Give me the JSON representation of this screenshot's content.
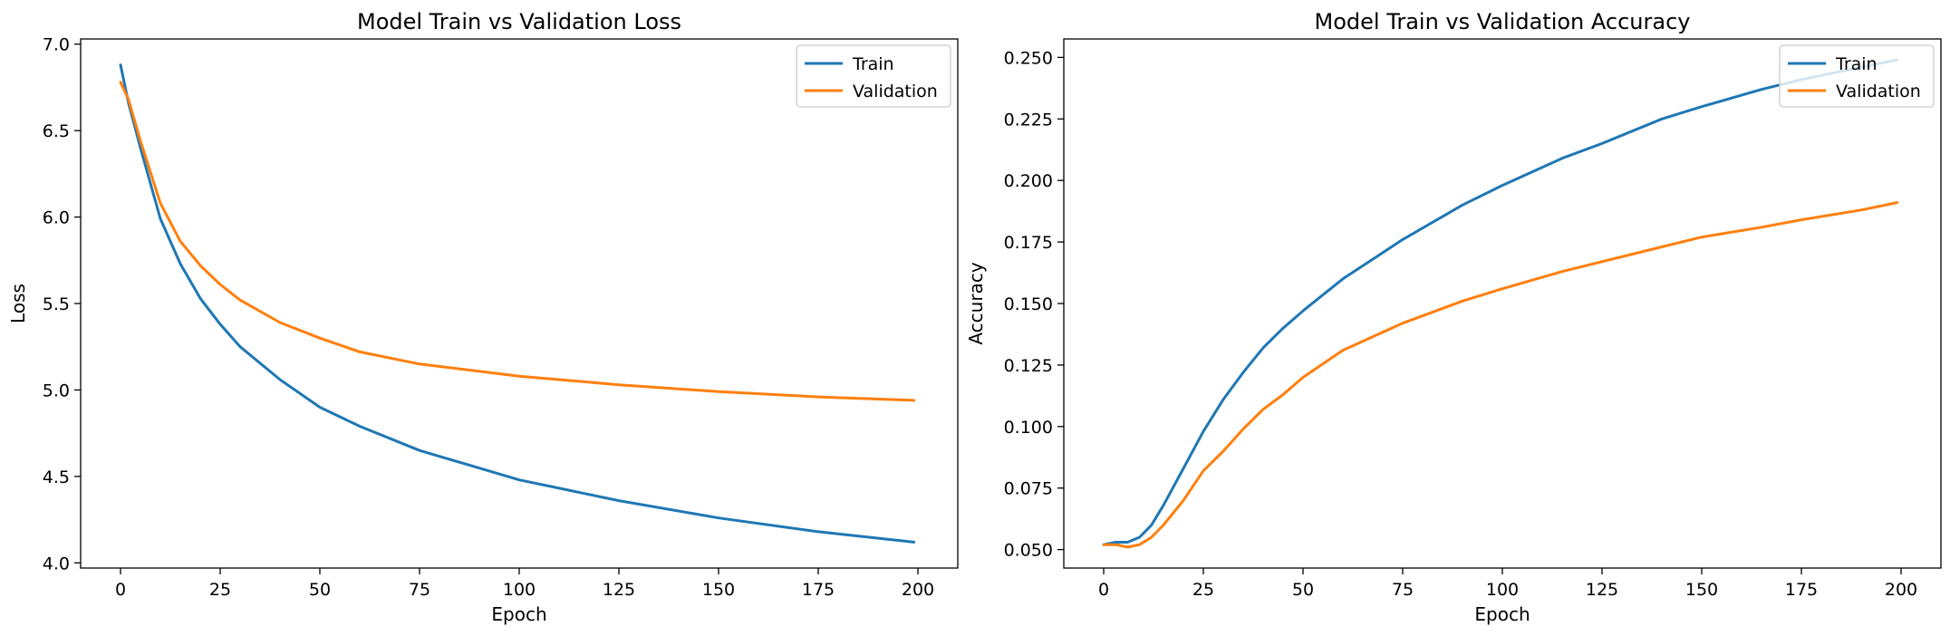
{
  "chart_data": [
    {
      "type": "line",
      "title": "Model Train vs Validation Loss",
      "xlabel": "Epoch",
      "ylabel": "Loss",
      "xlim": [
        -10,
        210
      ],
      "ylim": [
        3.97,
        7.03
      ],
      "xticks": [
        0,
        25,
        50,
        75,
        100,
        125,
        150,
        175,
        200
      ],
      "yticks": [
        4.0,
        4.5,
        5.0,
        5.5,
        6.0,
        6.5,
        7.0
      ],
      "ytick_decimals": 1,
      "grid": false,
      "legend": "top-right",
      "series": [
        {
          "name": "Train",
          "color": "#1f77b4",
          "x": [
            0,
            2,
            5,
            10,
            15,
            20,
            25,
            30,
            40,
            50,
            60,
            75,
            100,
            125,
            150,
            175,
            199
          ],
          "y": [
            6.88,
            6.66,
            6.4,
            5.99,
            5.73,
            5.53,
            5.38,
            5.25,
            5.06,
            4.9,
            4.79,
            4.65,
            4.48,
            4.36,
            4.26,
            4.18,
            4.12
          ]
        },
        {
          "name": "Validation",
          "color": "#ff7f0e",
          "x": [
            0,
            2,
            5,
            10,
            15,
            20,
            25,
            30,
            40,
            50,
            60,
            75,
            100,
            125,
            150,
            175,
            199
          ],
          "y": [
            6.78,
            6.68,
            6.44,
            6.08,
            5.86,
            5.72,
            5.61,
            5.52,
            5.39,
            5.3,
            5.22,
            5.15,
            5.08,
            5.03,
            4.99,
            4.96,
            4.94
          ]
        }
      ]
    },
    {
      "type": "line",
      "title": "Model Train vs Validation Accuracy",
      "xlabel": "Epoch",
      "ylabel": "Accuracy",
      "xlim": [
        -10,
        210
      ],
      "ylim": [
        0.0425,
        0.2575
      ],
      "xticks": [
        0,
        25,
        50,
        75,
        100,
        125,
        150,
        175,
        200
      ],
      "yticks": [
        0.05,
        0.075,
        0.1,
        0.125,
        0.15,
        0.175,
        0.2,
        0.225,
        0.25
      ],
      "ytick_decimals": 3,
      "grid": false,
      "legend": "top-right",
      "series": [
        {
          "name": "Train",
          "color": "#1f77b4",
          "x": [
            0,
            3,
            6,
            9,
            12,
            15,
            20,
            25,
            30,
            35,
            40,
            45,
            50,
            60,
            75,
            90,
            100,
            115,
            125,
            140,
            150,
            165,
            175,
            190,
            199
          ],
          "y": [
            0.052,
            0.053,
            0.053,
            0.055,
            0.06,
            0.068,
            0.083,
            0.098,
            0.111,
            0.122,
            0.132,
            0.14,
            0.147,
            0.16,
            0.176,
            0.19,
            0.198,
            0.209,
            0.215,
            0.225,
            0.23,
            0.237,
            0.241,
            0.246,
            0.249
          ]
        },
        {
          "name": "Validation",
          "color": "#ff7f0e",
          "x": [
            0,
            3,
            6,
            9,
            12,
            15,
            20,
            25,
            30,
            35,
            40,
            45,
            50,
            60,
            75,
            90,
            100,
            115,
            125,
            140,
            150,
            165,
            175,
            190,
            199
          ],
          "y": [
            0.052,
            0.052,
            0.051,
            0.052,
            0.055,
            0.06,
            0.07,
            0.082,
            0.09,
            0.099,
            0.107,
            0.113,
            0.12,
            0.131,
            0.142,
            0.151,
            0.156,
            0.163,
            0.167,
            0.173,
            0.177,
            0.181,
            0.184,
            0.188,
            0.191
          ]
        }
      ]
    }
  ]
}
